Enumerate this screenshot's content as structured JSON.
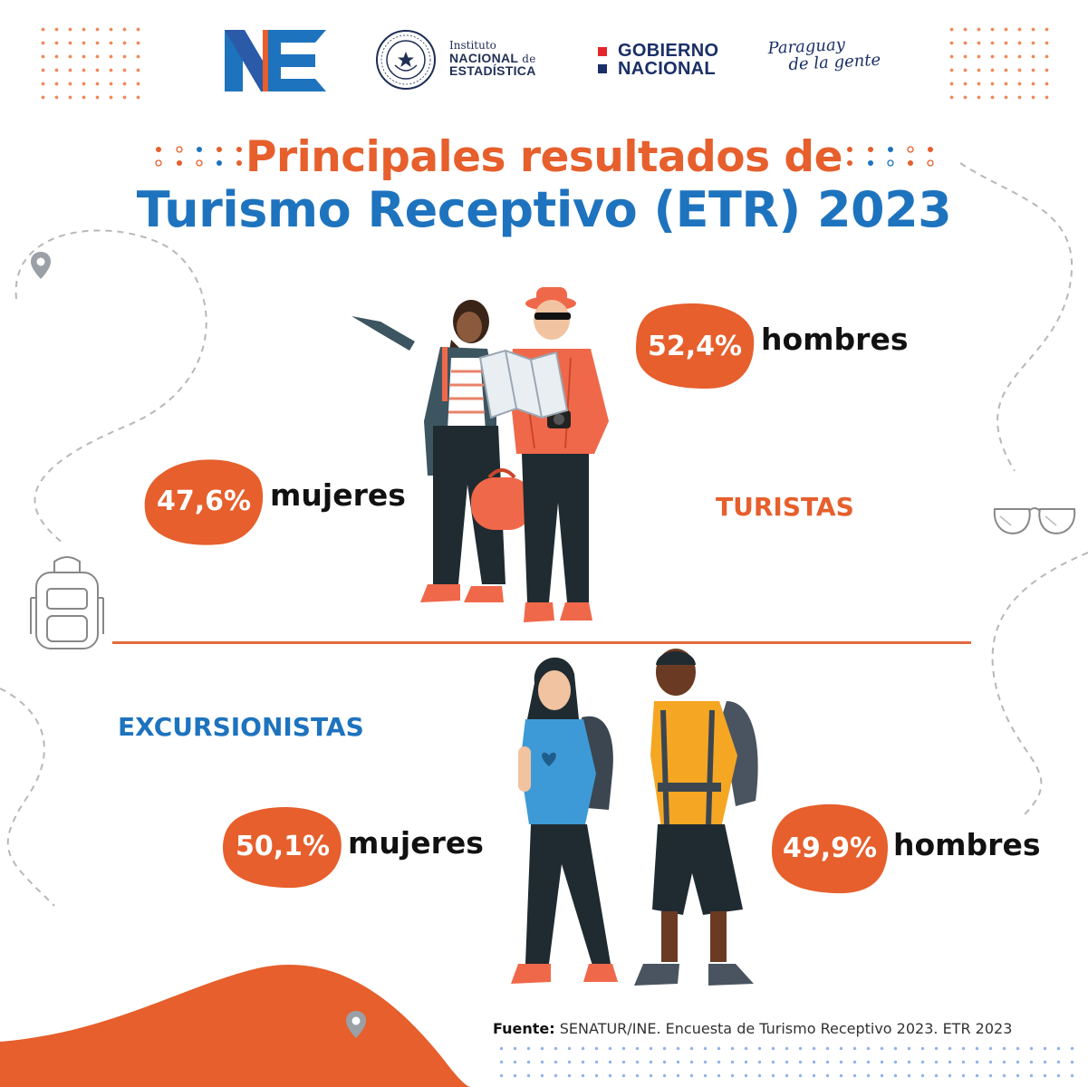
{
  "header": {
    "institute_line1": "Instituto",
    "institute_line2a": "NACIONAL",
    "institute_line2b": "de",
    "institute_line3": "ESTADÍSTICA",
    "gobierno_line1": "GOBIERNO",
    "gobierno_line2": "NACIONAL",
    "slogan_line1": "Paraguay",
    "slogan_line2": "de la gente",
    "seal_text": "REPÚBLICA DEL PARAGUAY"
  },
  "title": {
    "line1": "Principales resultados de",
    "line2": "Turismo Receptivo (ETR) 2023"
  },
  "turistas": {
    "label": "TURISTAS",
    "hombres_pct": "52,4%",
    "hombres_label": "hombres",
    "mujeres_pct": "47,6%",
    "mujeres_label": "mujeres"
  },
  "excursionistas": {
    "label": "EXCURSIONISTAS",
    "mujeres_pct": "50,1%",
    "mujeres_label": "mujeres",
    "hombres_pct": "49,9%",
    "hombres_label": "hombres"
  },
  "source": {
    "prefix": "Fuente:",
    "text": " SENATUR/INE. Encuesta de Turismo Receptivo 2023. ETR 2023"
  },
  "colors": {
    "orange": "#e65f2c",
    "blue": "#1e73be",
    "navy": "#1a2f67"
  }
}
